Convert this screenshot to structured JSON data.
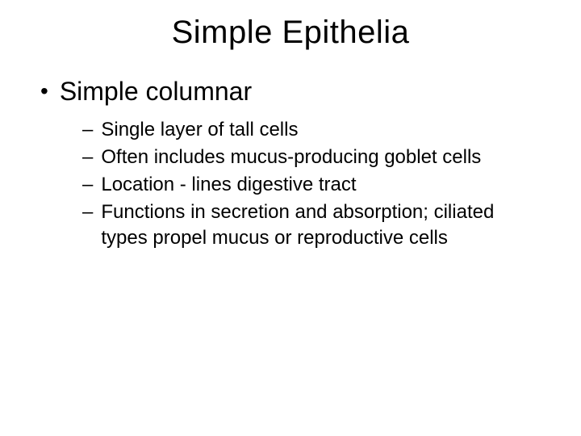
{
  "slide": {
    "title": "Simple Epithelia",
    "background_color": "#ffffff",
    "text_color": "#000000",
    "title_fontsize": 40,
    "l1_fontsize": 32,
    "l2_fontsize": 24,
    "l1_marker": "•",
    "l2_marker": "–",
    "bullet_l1": {
      "text": "Simple columnar"
    },
    "bullets_l2": [
      {
        "text": "Single layer of tall cells"
      },
      {
        "text": "Often includes mucus-producing goblet cells"
      },
      {
        "text": "Location - lines digestive tract"
      },
      {
        "text": "Functions in secretion and absorption; ciliated types propel mucus or reproductive cells"
      }
    ]
  }
}
